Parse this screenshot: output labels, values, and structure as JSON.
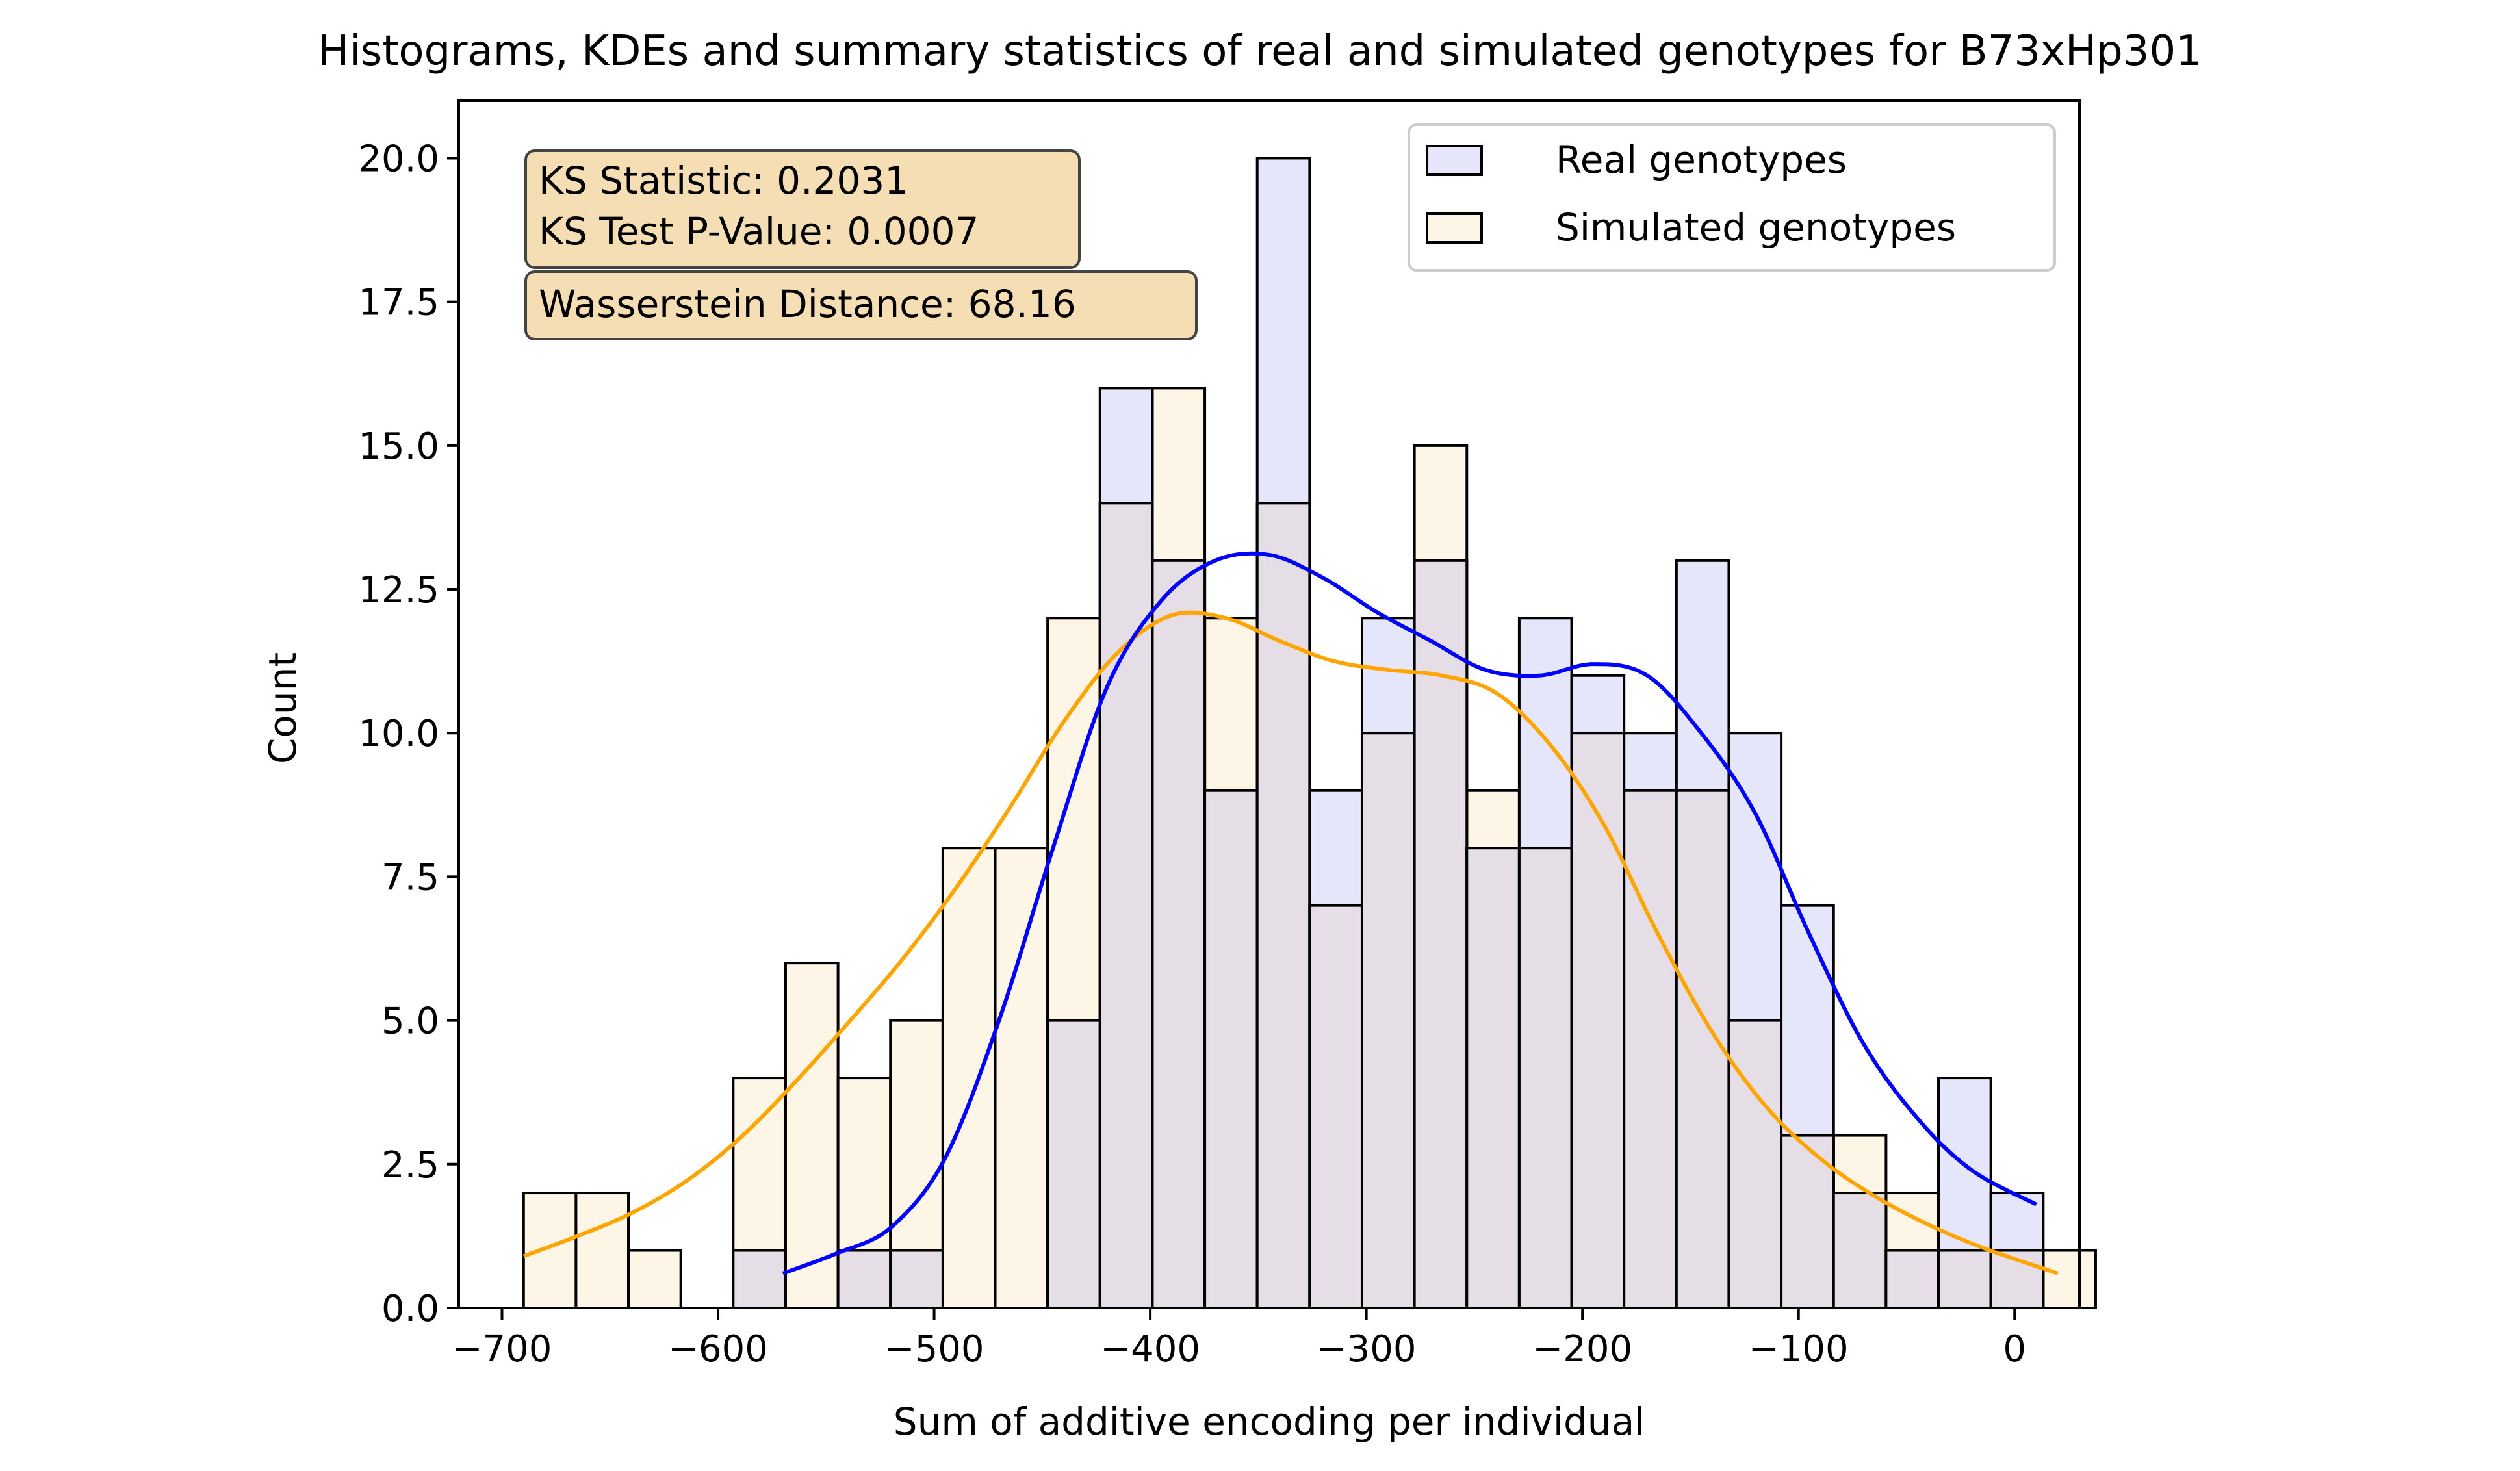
{
  "chart_data": {
    "type": "bar",
    "title": "Histograms, KDEs and summary statistics of real and simulated genotypes for B73xHp301",
    "xlabel": "Sum of additive encoding per individual",
    "ylabel": "Count",
    "xlim": [
      -720,
      30
    ],
    "ylim": [
      0,
      21
    ],
    "xticks": [
      -700,
      -600,
      -500,
      -400,
      -300,
      -200,
      -100,
      0
    ],
    "xtick_labels": [
      "−700",
      "−600",
      "−500",
      "−400",
      "−300",
      "−200",
      "−100",
      "0"
    ],
    "yticks": [
      0,
      2.5,
      5,
      7.5,
      10,
      12.5,
      15,
      17.5,
      20
    ],
    "ytick_labels": [
      "0.0",
      "2.5",
      "5.0",
      "7.5",
      "10.0",
      "12.5",
      "15.0",
      "17.5",
      "20.0"
    ],
    "grid": false,
    "legend_position": "top-right",
    "bins": {
      "start": -690,
      "width": 24.25,
      "count": 30
    },
    "series": [
      {
        "name": "Real genotypes",
        "fill_color": "#e6e6fa",
        "line_color": "#0000ff",
        "values": [
          0,
          0,
          0,
          0,
          1,
          0,
          1,
          1,
          0,
          0,
          5,
          16,
          13,
          9,
          20,
          9,
          12,
          13,
          8,
          12,
          11,
          10,
          13,
          10,
          7,
          2,
          1,
          4,
          2,
          0
        ],
        "kde": {
          "x": [
            -570,
            -545,
            -520,
            -495,
            -470,
            -445,
            -420,
            -395,
            -370,
            -345,
            -320,
            -295,
            -270,
            -245,
            -220,
            -195,
            -170,
            -145,
            -120,
            -95,
            -70,
            -45,
            -20,
            10
          ],
          "y": [
            0.6,
            0.95,
            1.4,
            2.6,
            5.0,
            8.0,
            10.8,
            12.3,
            13.0,
            13.1,
            12.7,
            12.1,
            11.6,
            11.1,
            11.0,
            11.2,
            11.0,
            10.0,
            8.6,
            6.5,
            4.6,
            3.3,
            2.4,
            1.8
          ]
        }
      },
      {
        "name": "Simulated genotypes",
        "fill_color": "#fdf5e6",
        "line_color": "#ffa500",
        "values": [
          2,
          2,
          1,
          0,
          4,
          6,
          4,
          5,
          8,
          8,
          12,
          14,
          16,
          12,
          14,
          7,
          10,
          15,
          9,
          8,
          10,
          9,
          9,
          5,
          3,
          3,
          2,
          1,
          1,
          1
        ],
        "kde": {
          "x": [
            -690,
            -665,
            -640,
            -615,
            -590,
            -565,
            -540,
            -515,
            -490,
            -465,
            -440,
            -415,
            -390,
            -365,
            -340,
            -315,
            -290,
            -265,
            -240,
            -215,
            -190,
            -165,
            -140,
            -115,
            -90,
            -65,
            -40,
            -15,
            20
          ],
          "y": [
            0.9,
            1.25,
            1.65,
            2.2,
            2.95,
            3.9,
            4.95,
            6.05,
            7.3,
            8.7,
            10.2,
            11.4,
            12.05,
            12.0,
            11.6,
            11.25,
            11.1,
            11.0,
            10.7,
            9.8,
            8.4,
            6.5,
            4.8,
            3.5,
            2.6,
            1.95,
            1.45,
            1.05,
            0.6
          ]
        }
      }
    ],
    "annotations": {
      "ks_statistic": "KS Statistic: 0.2031",
      "ks_pvalue": "KS Test P-Value: 0.0007",
      "wasserstein": "Wasserstein Distance: 68.16",
      "box_fill": "#f5deb3"
    },
    "overlap_color": "#e6dee6"
  }
}
